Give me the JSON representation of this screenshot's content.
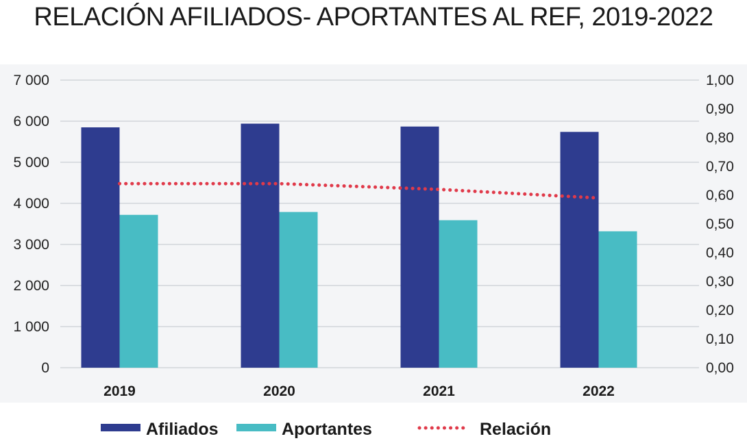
{
  "chart_data": {
    "type": "bar",
    "title": "RELACIÓN AFILIADOS- APORTANTES AL REF, 2019-2022",
    "categories": [
      "2019",
      "2020",
      "2021",
      "2022"
    ],
    "series": [
      {
        "name": "Afiliados",
        "type": "bar",
        "axis": "left",
        "color": "#2e3c8f",
        "values": [
          5850,
          5940,
          5870,
          5740
        ]
      },
      {
        "name": "Aportantes",
        "type": "bar",
        "axis": "left",
        "color": "#48bcc4",
        "values": [
          3720,
          3790,
          3590,
          3320
        ]
      },
      {
        "name": "Relación",
        "type": "line",
        "style": "dotted",
        "axis": "right",
        "color": "#e03a4a",
        "values": [
          0.64,
          0.64,
          0.62,
          0.59
        ]
      }
    ],
    "y_left": {
      "ylim": [
        0,
        7000
      ],
      "ticks": [
        "0",
        "1 000",
        "2 000",
        "3 000",
        "4 000",
        "5 000",
        "6 000",
        "7 000"
      ]
    },
    "y_right": {
      "ylim": [
        0,
        1.0
      ],
      "ticks": [
        "0,00",
        "0,10",
        "0,20",
        "0,30",
        "0,40",
        "0,50",
        "0,60",
        "0,70",
        "0,80",
        "0,90",
        "1,00"
      ]
    },
    "grid": true,
    "legend_position": "bottom",
    "colors": {
      "plot_background": "#f4f5f7",
      "gridline": "#d2d5da"
    }
  }
}
